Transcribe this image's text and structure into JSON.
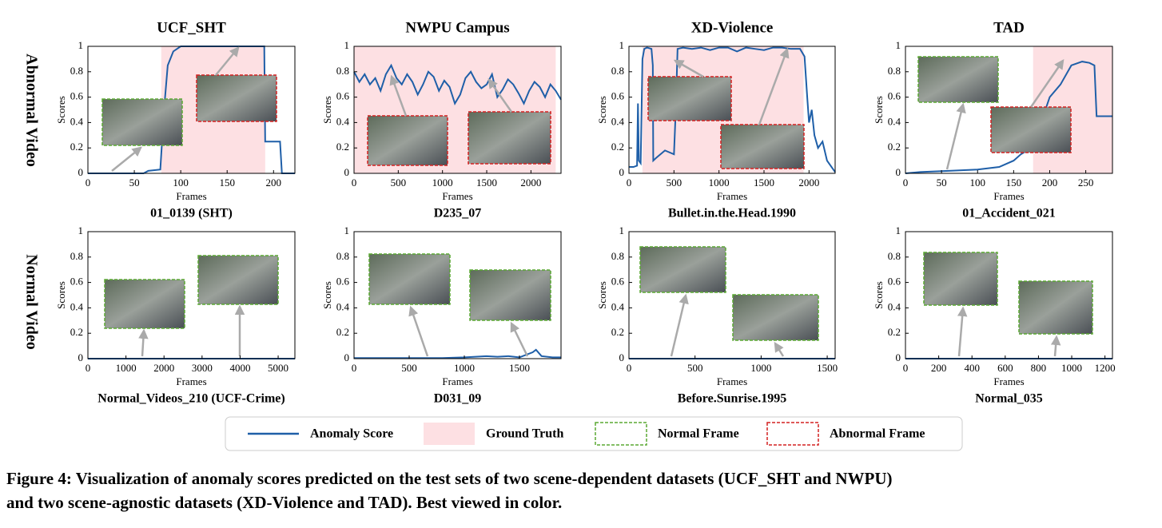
{
  "row_labels": [
    "Abnormal Video",
    "Normal Video"
  ],
  "legend": [
    {
      "label": "Anomaly Score",
      "color": "#1f5fa8",
      "style": "line"
    },
    {
      "label": "Ground Truth",
      "color": "#fde0e3",
      "style": "fill"
    },
    {
      "label": "Normal Frame",
      "color": "#5aa832",
      "style": "dashed"
    },
    {
      "label": "Abnormal Frame",
      "color": "#d42020",
      "style": "dashed"
    }
  ],
  "caption": [
    "Figure 4: Visualization of anomaly scores predicted on the test sets of two scene-dependent datasets (UCF_SHT and NWPU)",
    "and two scene-agnostic datasets (XD-Violence and TAD). Best viewed in color."
  ],
  "chart_data": [
    {
      "type": "line",
      "title": "UCF_SHT",
      "subtitle": "01_0139 (SHT)",
      "x_label": "Frames",
      "y_label": "Scores",
      "x": [
        0,
        60,
        65,
        78,
        82,
        86,
        92,
        100,
        150,
        190,
        191,
        207,
        209,
        223
      ],
      "series": [
        {
          "color": "#1f5fa8",
          "values": [
            0,
            0,
            0.02,
            0.03,
            0.5,
            0.85,
            0.96,
            1,
            1,
            1,
            0.25,
            0.25,
            0,
            0
          ]
        }
      ],
      "ground_truth": [
        [
          79,
          191
        ]
      ],
      "gt_color": "#fde0e3",
      "xlim": [
        0,
        223
      ],
      "xticks": [
        0,
        50,
        100,
        150,
        200
      ],
      "ylim": [
        0,
        1
      ],
      "yticks": [
        0,
        0.2,
        0.4,
        0.6,
        0.8,
        1
      ]
    },
    {
      "type": "line",
      "title": "NWPU Campus",
      "subtitle": "D235_07",
      "x_label": "Frames",
      "y_label": "Scores",
      "x": [
        0,
        60,
        120,
        180,
        240,
        300,
        360,
        420,
        480,
        540,
        600,
        660,
        720,
        780,
        840,
        900,
        960,
        1020,
        1080,
        1140,
        1200,
        1260,
        1320,
        1380,
        1440,
        1500,
        1560,
        1620,
        1680,
        1740,
        1800,
        1860,
        1920,
        1980,
        2040,
        2100,
        2160,
        2220,
        2280,
        2340
      ],
      "series": [
        {
          "color": "#1f5fa8",
          "values": [
            0.8,
            0.72,
            0.78,
            0.7,
            0.75,
            0.65,
            0.78,
            0.85,
            0.75,
            0.7,
            0.78,
            0.72,
            0.62,
            0.7,
            0.8,
            0.76,
            0.65,
            0.73,
            0.68,
            0.55,
            0.62,
            0.75,
            0.8,
            0.72,
            0.67,
            0.7,
            0.78,
            0.6,
            0.66,
            0.74,
            0.7,
            0.63,
            0.55,
            0.65,
            0.72,
            0.68,
            0.6,
            0.7,
            0.65,
            0.58
          ]
        }
      ],
      "ground_truth": [
        [
          0,
          2280
        ]
      ],
      "gt_color": "#fde0e3",
      "xlim": [
        0,
        2340
      ],
      "xticks": [
        0,
        500,
        1000,
        1500,
        2000
      ],
      "ylim": [
        0,
        1
      ],
      "yticks": [
        0,
        0.2,
        0.4,
        0.6,
        0.8,
        1
      ]
    },
    {
      "type": "line",
      "title": "XD-Violence",
      "subtitle": "Bullet.in.the.Head.1990",
      "x_label": "Frames",
      "y_label": "Scores",
      "x": [
        0,
        50,
        90,
        100,
        110,
        130,
        150,
        170,
        200,
        250,
        265,
        270,
        300,
        400,
        500,
        520,
        540,
        600,
        700,
        800,
        900,
        1000,
        1100,
        1200,
        1300,
        1400,
        1500,
        1600,
        1700,
        1800,
        1900,
        1950,
        1980,
        2000,
        2030,
        2060,
        2100,
        2150,
        2200,
        2250,
        2290
      ],
      "series": [
        {
          "color": "#1f5fa8",
          "values": [
            0.05,
            0.05,
            0.06,
            0.55,
            0.1,
            0.08,
            0.9,
            0.98,
            0.99,
            0.98,
            0.85,
            0.1,
            0.12,
            0.18,
            0.15,
            0.5,
            0.98,
            0.99,
            0.98,
            0.99,
            0.97,
            0.99,
            0.99,
            0.96,
            0.99,
            0.98,
            0.97,
            0.99,
            0.99,
            0.98,
            0.98,
            0.92,
            0.6,
            0.4,
            0.5,
            0.3,
            0.2,
            0.25,
            0.1,
            0.05,
            0.01
          ]
        }
      ],
      "ground_truth": [
        [
          150,
          1940
        ]
      ],
      "gt_color": "#fde0e3",
      "xlim": [
        0,
        2290
      ],
      "xticks": [
        0,
        500,
        1000,
        1500,
        2000
      ],
      "ylim": [
        0,
        1
      ],
      "yticks": [
        0,
        0.2,
        0.4,
        0.6,
        0.8,
        1
      ]
    },
    {
      "type": "line",
      "title": "TAD",
      "subtitle": "01_Accident_021",
      "x_label": "Frames",
      "y_label": "Scores",
      "x": [
        0,
        20,
        60,
        100,
        130,
        150,
        160,
        175,
        185,
        200,
        215,
        230,
        245,
        255,
        262,
        265,
        287
      ],
      "series": [
        {
          "color": "#1f5fa8",
          "values": [
            0,
            0.01,
            0.02,
            0.03,
            0.05,
            0.1,
            0.15,
            0.2,
            0.35,
            0.6,
            0.7,
            0.85,
            0.88,
            0.87,
            0.85,
            0.45,
            0.45
          ]
        }
      ],
      "ground_truth": [
        [
          177,
          287
        ]
      ],
      "gt_color": "#fde0e3",
      "xlim": [
        0,
        287
      ],
      "xticks": [
        0,
        50,
        100,
        150,
        200,
        250
      ],
      "ylim": [
        0,
        1
      ],
      "yticks": [
        0,
        0.2,
        0.4,
        0.6,
        0.8,
        1
      ]
    },
    {
      "type": "line",
      "subtitle": "Normal_Videos_210 (UCF-Crime)",
      "x_label": "Frames",
      "y_label": "Scores",
      "x": [
        0,
        5440
      ],
      "series": [
        {
          "color": "#1f5fa8",
          "values": [
            0,
            0
          ]
        }
      ],
      "xlim": [
        0,
        5440
      ],
      "xticks": [
        0,
        1000,
        2000,
        3000,
        4000,
        5000
      ],
      "ylim": [
        0,
        1
      ],
      "yticks": [
        0,
        0.2,
        0.4,
        0.6,
        0.8,
        1
      ]
    },
    {
      "type": "line",
      "subtitle": "D031_09",
      "x_label": "Frames",
      "y_label": "Scores",
      "x": [
        0,
        200,
        400,
        600,
        800,
        1000,
        1200,
        1300,
        1400,
        1500,
        1560,
        1620,
        1650,
        1700,
        1800,
        1877
      ],
      "series": [
        {
          "color": "#1f5fa8",
          "values": [
            0.005,
            0.005,
            0.005,
            0.005,
            0.005,
            0.01,
            0.02,
            0.015,
            0.02,
            0.01,
            0.03,
            0.05,
            0.07,
            0.02,
            0.01,
            0.01
          ]
        }
      ],
      "xlim": [
        0,
        1877
      ],
      "xticks": [
        0,
        500,
        1000,
        1500
      ],
      "ylim": [
        0,
        1
      ],
      "yticks": [
        0,
        0.2,
        0.4,
        0.6,
        0.8,
        1
      ]
    },
    {
      "type": "line",
      "subtitle": "Before.Sunrise.1995",
      "x_label": "Frames",
      "y_label": "Scores",
      "x": [
        0,
        1560
      ],
      "series": [
        {
          "color": "#1f5fa8",
          "values": [
            0,
            0
          ]
        }
      ],
      "xlim": [
        0,
        1560
      ],
      "xticks": [
        0,
        500,
        1000,
        1500
      ],
      "ylim": [
        0,
        1
      ],
      "yticks": [
        0,
        0.2,
        0.4,
        0.6,
        0.8,
        1
      ]
    },
    {
      "type": "line",
      "subtitle": "Normal_035",
      "x_label": "Frames",
      "y_label": "Scores",
      "x": [
        0,
        1245
      ],
      "series": [
        {
          "color": "#1f5fa8",
          "values": [
            0,
            0
          ]
        }
      ],
      "xlim": [
        0,
        1245
      ],
      "xticks": [
        0,
        200,
        400,
        600,
        800,
        1000,
        1200
      ],
      "ylim": [
        0,
        1
      ],
      "yticks": [
        0,
        0.2,
        0.4,
        0.6,
        0.8,
        1
      ]
    }
  ]
}
